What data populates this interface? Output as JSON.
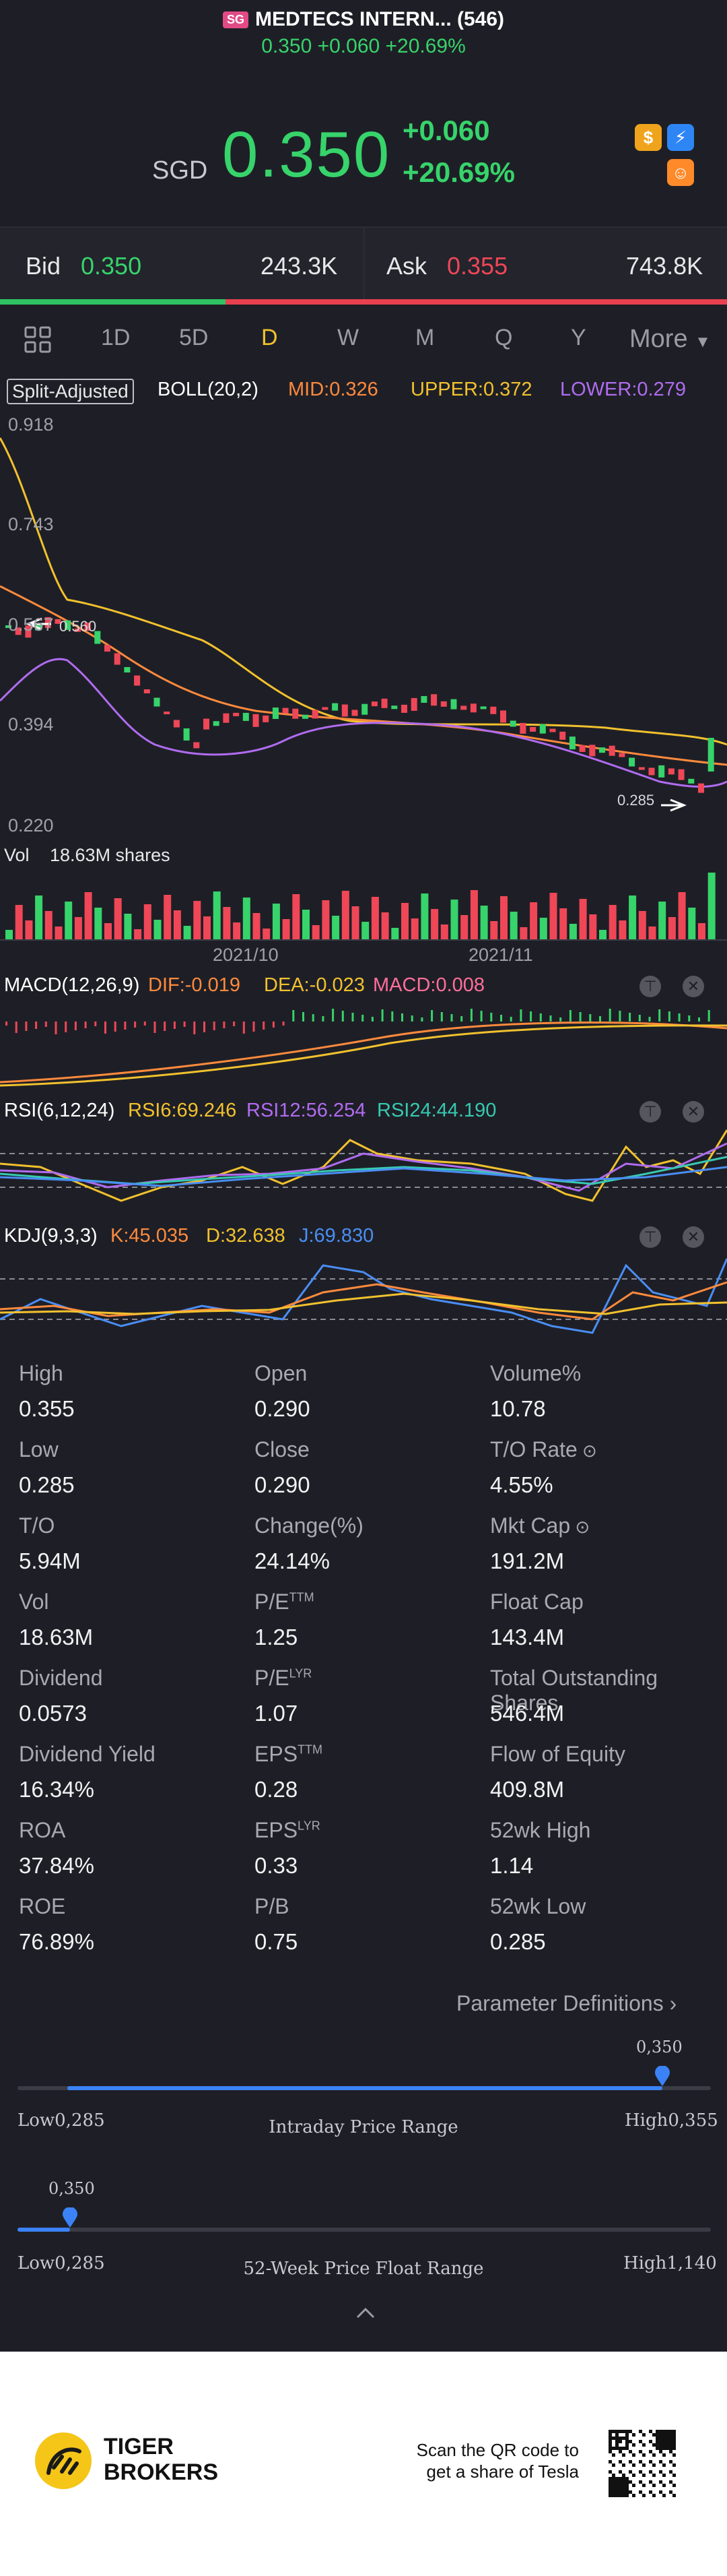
{
  "header": {
    "flag": "SG",
    "title": "MEDTECS INTERN... (546)",
    "subtitle": "0.350 +0.060 +20.69%"
  },
  "quote": {
    "currency": "SGD",
    "price": "0.350",
    "change": "+0.060",
    "change_pct": "+20.69%"
  },
  "icons": [
    "dollar-icon",
    "bolt-icon",
    "app-icon"
  ],
  "bidask": {
    "bid_label": "Bid",
    "bid_price": "0.350",
    "bid_size": "243.3K",
    "ask_label": "Ask",
    "ask_price": "0.355",
    "ask_size": "743.8K",
    "bid_share": 0.31
  },
  "tabs": [
    "1D",
    "5D",
    "D",
    "W",
    "M",
    "Q",
    "Y",
    "More"
  ],
  "active_tab": "D",
  "indicator_bar": {
    "split": "Split-Adjusted",
    "boll": "BOLL(20,2)",
    "mid": "MID:0.326",
    "upper": "UPPER:0.372",
    "lower": "LOWER:0.279"
  },
  "main_chart": {
    "y_labels": [
      "0.918",
      "0.743",
      "0.567",
      "0.394",
      "0.220"
    ],
    "high_marker": "0.560",
    "low_marker": "0.285",
    "vol_label": "Vol",
    "vol_value": "18.63M shares",
    "x_labels": [
      "2021/10",
      "2021/11"
    ]
  },
  "macd": {
    "title": "MACD(12,26,9)",
    "dif": "DIF:-0.019",
    "dea": "DEA:-0.023",
    "macd": "MACD:0.008"
  },
  "rsi": {
    "title": "RSI(6,12,24)",
    "r6": "RSI6:69.246",
    "r12": "RSI12:56.254",
    "r24": "RSI24:44.190"
  },
  "kdj": {
    "title": "KDJ(9,3,3)",
    "k": "K:45.035",
    "d": "D:32.638",
    "j": "J:69.830"
  },
  "chart_data": {
    "type": "candlestick",
    "y_range": [
      0.22,
      0.918
    ],
    "bollinger": {
      "mid": 0.326,
      "upper": 0.372,
      "lower": 0.279
    },
    "last_close": 0.35,
    "last_volume": "18.63M"
  },
  "colors": {
    "up": "#37d36b",
    "down": "#ef4757",
    "mid": "#ff8a3d",
    "upper": "#f2c12e",
    "lower": "#b06cf0"
  },
  "stats": [
    {
      "label": "High",
      "value": "0.355"
    },
    {
      "label": "Open",
      "value": "0.290"
    },
    {
      "label": "Volume%",
      "value": "10.78"
    },
    {
      "label": "Low",
      "value": "0.285"
    },
    {
      "label": "Close",
      "value": "0.290"
    },
    {
      "label": "T/O Rate",
      "value": "4.55%"
    },
    {
      "label": "T/O",
      "value": "5.94M"
    },
    {
      "label": "Change(%)",
      "value": "24.14%"
    },
    {
      "label": "Mkt Cap",
      "value": "191.2M"
    },
    {
      "label": "Vol",
      "value": "18.63M"
    },
    {
      "label": "P/E",
      "sup": "TTM",
      "value": "1.25"
    },
    {
      "label": "Float Cap",
      "value": "143.4M"
    },
    {
      "label": "Dividend",
      "value": "0.0573"
    },
    {
      "label": "P/E",
      "sup": "LYR",
      "value": "1.07"
    },
    {
      "label": "Total Outstanding Shares",
      "value": "546.4M"
    },
    {
      "label": "Dividend Yield",
      "value": "16.34%"
    },
    {
      "label": "EPS",
      "sup": "TTM",
      "value": "0.28"
    },
    {
      "label": "Flow of Equity",
      "value": "409.8M"
    },
    {
      "label": "ROA",
      "value": "37.84%"
    },
    {
      "label": "EPS",
      "sup": "LYR",
      "value": "0.33"
    },
    {
      "label": "52wk High",
      "value": "1.14"
    },
    {
      "label": "ROE",
      "value": "76.89%"
    },
    {
      "label": "P/B",
      "value": "0.75"
    },
    {
      "label": "52wk Low",
      "value": "0.285"
    }
  ],
  "param_link": "Parameter Definitions",
  "intraday": {
    "marker": "0,350",
    "low": "Low0,285",
    "high": "High0,355",
    "title": "Intraday Price Range",
    "position": 0.93
  },
  "week52": {
    "marker": "0,350",
    "low": "Low0,285",
    "high": "High1,140",
    "title": "52-Week Price Float Range",
    "position": 0.076
  },
  "footer": {
    "brand_line1": "TIGER",
    "brand_line2": "BROKERS",
    "cta_line1": "Scan the QR code to",
    "cta_line2": "get a share of Tesla"
  }
}
